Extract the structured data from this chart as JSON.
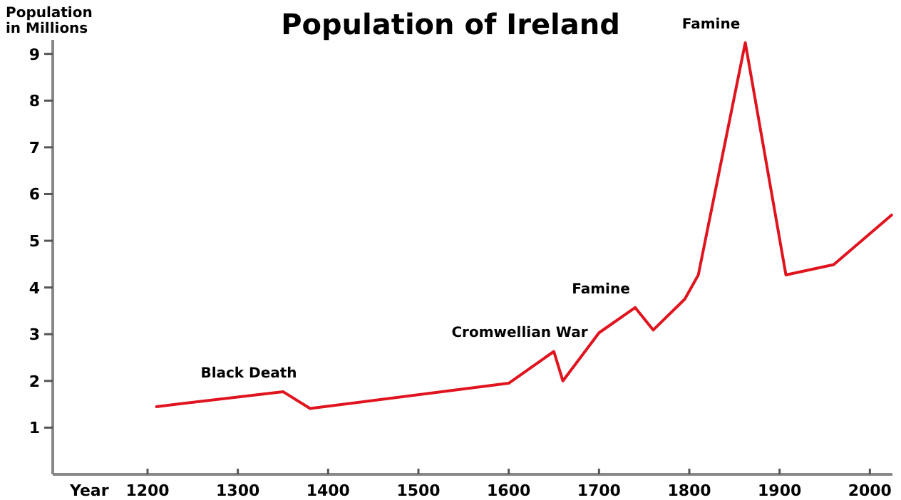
{
  "chart_data": {
    "type": "line",
    "title": "Population of Ireland",
    "xlabel": "Year",
    "ylabel": "Population\nin Millions",
    "x": [
      1210,
      1350,
      1380,
      1600,
      1650,
      1660,
      1700,
      1740,
      1760,
      1795,
      1810,
      1862,
      1907,
      1960,
      2024
    ],
    "series": [
      {
        "color": "#e0141e",
        "values": [
          1.45,
          1.77,
          1.41,
          1.95,
          2.63,
          2.0,
          3.03,
          3.57,
          3.09,
          3.75,
          4.27,
          9.24,
          4.27,
          4.49,
          5.55
        ]
      }
    ],
    "xlim": [
      1095,
      2025
    ],
    "xticks": [
      1200,
      1300,
      1400,
      1500,
      1600,
      1700,
      1800,
      1900,
      2000
    ],
    "ylim": [
      0,
      9.3
    ],
    "yticks": [
      1,
      2,
      3,
      4,
      5,
      6,
      7,
      8,
      9
    ],
    "annotations": [
      {
        "text": "Black Death",
        "x": 1350,
        "y": 1.77
      },
      {
        "text": "Cromwellian War",
        "x": 1650,
        "y": 2.63
      },
      {
        "text": "Famine",
        "x": 1740,
        "y": 3.57
      },
      {
        "text": "Famine",
        "x": 1862,
        "y": 9.24
      }
    ],
    "grid": false,
    "marker": "none",
    "line_style": "solid"
  }
}
